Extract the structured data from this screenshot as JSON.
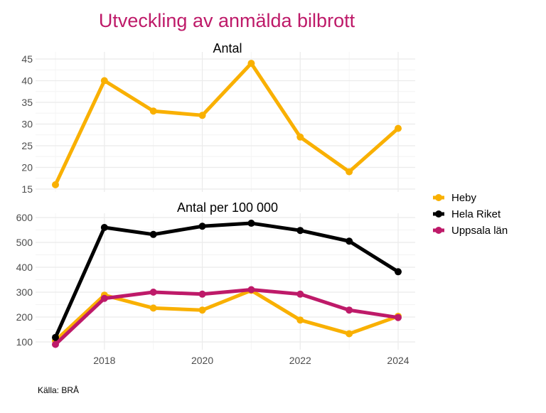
{
  "title": "Utveckling av anmälda bilbrott",
  "source": "Källa: BRÅ",
  "colors": {
    "Heby": "#F9B000",
    "Hela Riket": "#000000",
    "Uppsala län": "#BE1A69",
    "title": "#BE1A69"
  },
  "legend": {
    "position": "right",
    "entries": [
      "Heby",
      "Hela Riket",
      "Uppsala län"
    ]
  },
  "chart_data": [
    {
      "type": "line",
      "title": "Antal",
      "x": [
        2017,
        2018,
        2019,
        2020,
        2021,
        2022,
        2023,
        2024
      ],
      "yticks": [
        15,
        20,
        25,
        30,
        35,
        40,
        45
      ],
      "ylim": [
        14,
        46
      ],
      "grid": true,
      "series": [
        {
          "name": "Heby",
          "values": [
            16,
            40,
            33,
            32,
            44,
            27,
            19,
            29
          ]
        }
      ]
    },
    {
      "type": "line",
      "title": "Antal per 100 000",
      "x": [
        2017,
        2018,
        2019,
        2020,
        2021,
        2022,
        2023,
        2024
      ],
      "xticks": [
        2018,
        2020,
        2022,
        2024
      ],
      "yticks": [
        100,
        200,
        300,
        400,
        500,
        600
      ],
      "ylim": [
        70,
        615
      ],
      "grid": true,
      "series": [
        {
          "name": "Heby",
          "values": [
            105,
            288,
            236,
            228,
            307,
            188,
            133,
            203
          ]
        },
        {
          "name": "Hela Riket",
          "values": [
            118,
            560,
            532,
            565,
            577,
            548,
            505,
            382
          ]
        },
        {
          "name": "Uppsala län",
          "values": [
            90,
            275,
            300,
            292,
            310,
            292,
            228,
            198
          ]
        }
      ]
    }
  ]
}
